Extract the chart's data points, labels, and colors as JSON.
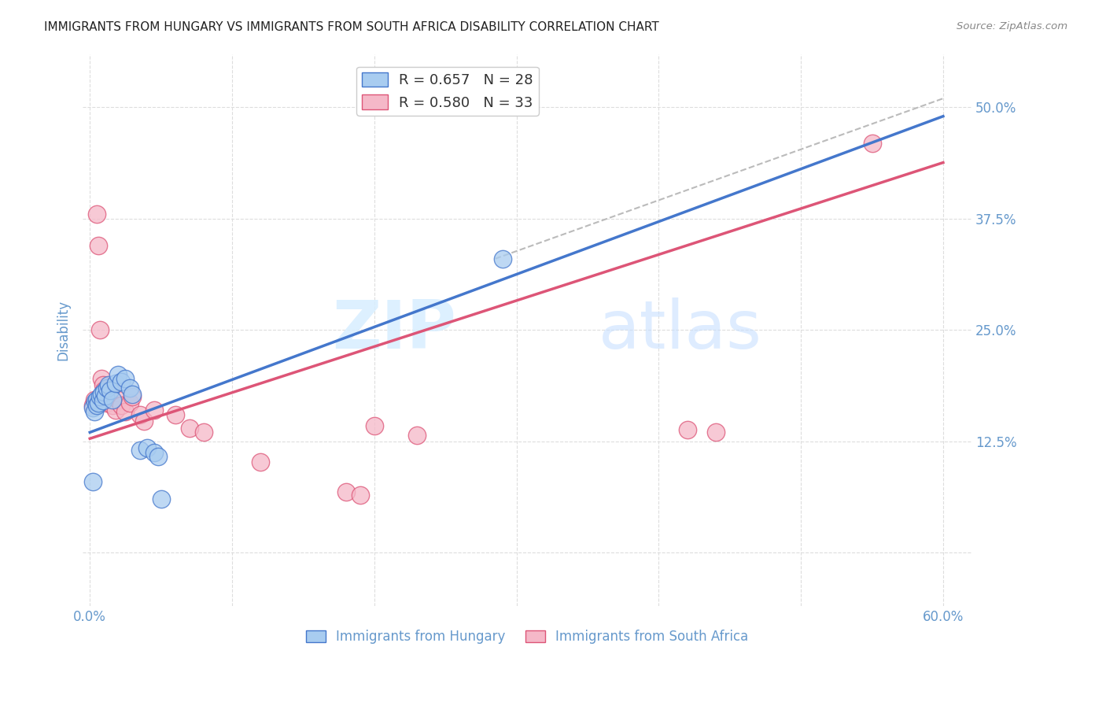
{
  "title": "IMMIGRANTS FROM HUNGARY VS IMMIGRANTS FROM SOUTH AFRICA DISABILITY CORRELATION CHART",
  "source": "Source: ZipAtlas.com",
  "xlabel_ticks": [
    "0.0%",
    "",
    "",
    "",
    "",
    "",
    "60.0%"
  ],
  "xlabel_vals": [
    0.0,
    0.1,
    0.2,
    0.3,
    0.4,
    0.5,
    0.6
  ],
  "ylabel_ticks_right": [
    "50.0%",
    "37.5%",
    "25.0%",
    "12.5%",
    ""
  ],
  "ylabel_vals": [
    0.5,
    0.375,
    0.25,
    0.125,
    0.0
  ],
  "ylabel_label": "Disability",
  "xlim": [
    -0.005,
    0.62
  ],
  "ylim": [
    -0.06,
    0.56
  ],
  "legend_entries": [
    {
      "label": "R = 0.657   N = 28",
      "color": "#A8CCF0"
    },
    {
      "label": "R = 0.580   N = 33",
      "color": "#F5B8C8"
    }
  ],
  "watermark_zip": "ZIP",
  "watermark_atlas": "atlas",
  "hungary_scatter": [
    [
      0.002,
      0.163
    ],
    [
      0.003,
      0.158
    ],
    [
      0.004,
      0.17
    ],
    [
      0.005,
      0.172
    ],
    [
      0.005,
      0.165
    ],
    [
      0.006,
      0.168
    ],
    [
      0.007,
      0.175
    ],
    [
      0.008,
      0.178
    ],
    [
      0.009,
      0.171
    ],
    [
      0.01,
      0.18
    ],
    [
      0.011,
      0.176
    ],
    [
      0.012,
      0.185
    ],
    [
      0.013,
      0.188
    ],
    [
      0.014,
      0.182
    ],
    [
      0.016,
      0.172
    ],
    [
      0.018,
      0.19
    ],
    [
      0.02,
      0.2
    ],
    [
      0.022,
      0.192
    ],
    [
      0.025,
      0.195
    ],
    [
      0.028,
      0.185
    ],
    [
      0.03,
      0.178
    ],
    [
      0.035,
      0.115
    ],
    [
      0.04,
      0.118
    ],
    [
      0.045,
      0.112
    ],
    [
      0.048,
      0.108
    ],
    [
      0.05,
      0.06
    ],
    [
      0.29,
      0.33
    ],
    [
      0.002,
      0.08
    ]
  ],
  "hungary_line_x": [
    0.0,
    0.6
  ],
  "hungary_line_y": [
    0.135,
    0.49
  ],
  "south_africa_scatter": [
    [
      0.002,
      0.165
    ],
    [
      0.003,
      0.172
    ],
    [
      0.005,
      0.38
    ],
    [
      0.006,
      0.345
    ],
    [
      0.007,
      0.25
    ],
    [
      0.008,
      0.195
    ],
    [
      0.009,
      0.188
    ],
    [
      0.01,
      0.182
    ],
    [
      0.011,
      0.178
    ],
    [
      0.012,
      0.168
    ],
    [
      0.013,
      0.175
    ],
    [
      0.015,
      0.185
    ],
    [
      0.016,
      0.165
    ],
    [
      0.018,
      0.16
    ],
    [
      0.02,
      0.172
    ],
    [
      0.022,
      0.165
    ],
    [
      0.025,
      0.158
    ],
    [
      0.028,
      0.168
    ],
    [
      0.03,
      0.175
    ],
    [
      0.035,
      0.155
    ],
    [
      0.038,
      0.148
    ],
    [
      0.045,
      0.16
    ],
    [
      0.06,
      0.155
    ],
    [
      0.07,
      0.14
    ],
    [
      0.08,
      0.135
    ],
    [
      0.12,
      0.102
    ],
    [
      0.18,
      0.068
    ],
    [
      0.2,
      0.142
    ],
    [
      0.23,
      0.132
    ],
    [
      0.42,
      0.138
    ],
    [
      0.44,
      0.135
    ],
    [
      0.55,
      0.46
    ],
    [
      0.19,
      0.065
    ]
  ],
  "south_africa_line_x": [
    0.0,
    0.6
  ],
  "south_africa_line_y": [
    0.128,
    0.438
  ],
  "dashed_line_x": [
    0.285,
    0.6
  ],
  "dashed_line_y": [
    0.33,
    0.51
  ],
  "hungary_color": "#A8CCF0",
  "south_africa_color": "#F5B8C8",
  "hungary_edge_color": "#4477CC",
  "south_africa_edge_color": "#DD5577",
  "hungary_line_color": "#4477CC",
  "south_africa_line_color": "#DD5577",
  "dashed_line_color": "#BBBBBB",
  "background_color": "#FFFFFF",
  "grid_color": "#DDDDDD",
  "title_color": "#222222",
  "axis_label_color": "#6699CC",
  "tick_color": "#6699CC"
}
